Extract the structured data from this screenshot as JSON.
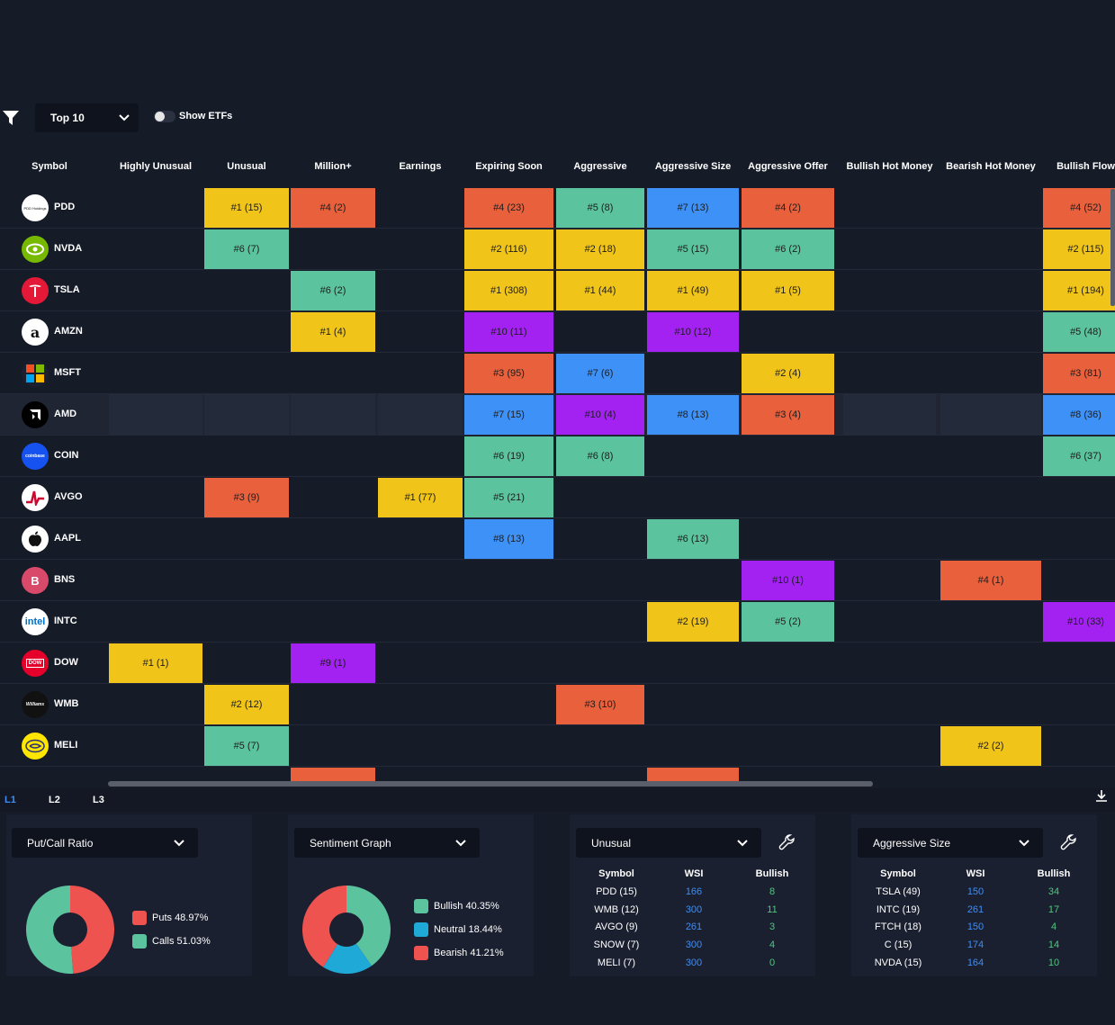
{
  "toolbar": {
    "top_select": "Top 10",
    "show_etfs": "Show ETFs"
  },
  "columns": [
    "Symbol",
    "Highly Unusual",
    "Unusual",
    "Million+",
    "Earnings",
    "Expiring Soon",
    "Aggressive",
    "Aggressive Size",
    "Aggressive Offer",
    "Bullish Hot Money",
    "Bearish Hot Money",
    "Bullish Flow"
  ],
  "colors": {
    "yellow": "#f0c419",
    "orange": "#e8603c",
    "teal": "#5bc49f",
    "blue": "#3e92f7",
    "purple": "#a322f2"
  },
  "rows": [
    {
      "symbol": "PDD",
      "logo": "PDD Holdings",
      "cells": [
        null,
        {
          "t": "#1 (15)",
          "c": "yellow"
        },
        {
          "t": "#4 (2)",
          "c": "orange"
        },
        null,
        {
          "t": "#4 (23)",
          "c": "orange"
        },
        {
          "t": "#5 (8)",
          "c": "teal"
        },
        {
          "t": "#7 (13)",
          "c": "blue"
        },
        {
          "t": "#4 (2)",
          "c": "orange"
        },
        null,
        null,
        {
          "t": "#4 (52)",
          "c": "orange"
        }
      ]
    },
    {
      "symbol": "NVDA",
      "logo": "",
      "cells": [
        null,
        {
          "t": "#6 (7)",
          "c": "teal"
        },
        null,
        null,
        {
          "t": "#2 (116)",
          "c": "yellow"
        },
        {
          "t": "#2 (18)",
          "c": "yellow"
        },
        {
          "t": "#5 (15)",
          "c": "teal"
        },
        {
          "t": "#6 (2)",
          "c": "teal"
        },
        null,
        null,
        {
          "t": "#2 (115)",
          "c": "yellow"
        }
      ]
    },
    {
      "symbol": "TSLA",
      "logo": "",
      "cells": [
        null,
        null,
        {
          "t": "#6 (2)",
          "c": "teal"
        },
        null,
        {
          "t": "#1 (308)",
          "c": "yellow"
        },
        {
          "t": "#1 (44)",
          "c": "yellow"
        },
        {
          "t": "#1 (49)",
          "c": "yellow"
        },
        {
          "t": "#1 (5)",
          "c": "yellow"
        },
        null,
        null,
        {
          "t": "#1 (194)",
          "c": "yellow"
        }
      ]
    },
    {
      "symbol": "AMZN",
      "logo": "a",
      "cells": [
        null,
        null,
        {
          "t": "#1 (4)",
          "c": "yellow"
        },
        null,
        {
          "t": "#10 (11)",
          "c": "purple"
        },
        null,
        {
          "t": "#10 (12)",
          "c": "purple"
        },
        null,
        null,
        null,
        {
          "t": "#5 (48)",
          "c": "teal"
        }
      ]
    },
    {
      "symbol": "MSFT",
      "logo": "",
      "cells": [
        null,
        null,
        null,
        null,
        {
          "t": "#3 (95)",
          "c": "orange"
        },
        {
          "t": "#7 (6)",
          "c": "blue"
        },
        null,
        {
          "t": "#2 (4)",
          "c": "yellow"
        },
        null,
        null,
        {
          "t": "#3 (81)",
          "c": "orange"
        }
      ]
    },
    {
      "symbol": "AMD",
      "logo": "",
      "highlight": true,
      "cells": [
        null,
        null,
        null,
        null,
        {
          "t": "#7 (15)",
          "c": "blue"
        },
        {
          "t": "#10 (4)",
          "c": "purple"
        },
        {
          "t": "#8 (13)",
          "c": "blue"
        },
        {
          "t": "#3 (4)",
          "c": "orange"
        },
        null,
        null,
        {
          "t": "#8 (36)",
          "c": "blue"
        }
      ]
    },
    {
      "symbol": "COIN",
      "logo": "coinbase",
      "cells": [
        null,
        null,
        null,
        null,
        {
          "t": "#6 (19)",
          "c": "teal"
        },
        {
          "t": "#6 (8)",
          "c": "teal"
        },
        null,
        null,
        null,
        null,
        {
          "t": "#6 (37)",
          "c": "teal"
        }
      ]
    },
    {
      "symbol": "AVGO",
      "logo": "",
      "cells": [
        null,
        {
          "t": "#3 (9)",
          "c": "orange"
        },
        null,
        {
          "t": "#1 (77)",
          "c": "yellow"
        },
        {
          "t": "#5 (21)",
          "c": "teal"
        },
        null,
        null,
        null,
        null,
        null,
        null
      ]
    },
    {
      "symbol": "AAPL",
      "logo": "",
      "cells": [
        null,
        null,
        null,
        null,
        {
          "t": "#8 (13)",
          "c": "blue"
        },
        null,
        {
          "t": "#6 (13)",
          "c": "teal"
        },
        null,
        null,
        null,
        null
      ]
    },
    {
      "symbol": "BNS",
      "logo": "B",
      "cells": [
        null,
        null,
        null,
        null,
        null,
        null,
        null,
        {
          "t": "#10 (1)",
          "c": "purple"
        },
        null,
        {
          "t": "#4 (1)",
          "c": "orange"
        },
        null
      ]
    },
    {
      "symbol": "INTC",
      "logo": "intel",
      "cells": [
        null,
        null,
        null,
        null,
        null,
        null,
        {
          "t": "#2 (19)",
          "c": "yellow"
        },
        {
          "t": "#5 (2)",
          "c": "teal"
        },
        null,
        null,
        {
          "t": "#10 (33)",
          "c": "purple"
        }
      ]
    },
    {
      "symbol": "DOW",
      "logo": "DOW",
      "cells": [
        {
          "t": "#1 (1)",
          "c": "yellow"
        },
        null,
        {
          "t": "#9 (1)",
          "c": "purple"
        },
        null,
        null,
        null,
        null,
        null,
        null,
        null,
        null
      ]
    },
    {
      "symbol": "WMB",
      "logo": "Williams",
      "cells": [
        null,
        {
          "t": "#2 (12)",
          "c": "yellow"
        },
        null,
        null,
        null,
        {
          "t": "#3 (10)",
          "c": "orange"
        },
        null,
        null,
        null,
        null,
        null
      ]
    },
    {
      "symbol": "MELI",
      "logo": "",
      "cells": [
        null,
        {
          "t": "#5 (7)",
          "c": "teal"
        },
        null,
        null,
        null,
        null,
        null,
        null,
        null,
        {
          "t": "#2 (2)",
          "c": "yellow"
        },
        null
      ]
    }
  ],
  "partial_row": {
    "cells": [
      null,
      null,
      {
        "t": "",
        "c": "orange"
      },
      null,
      null,
      null,
      {
        "t": "",
        "c": "orange"
      },
      null,
      null,
      null,
      null
    ]
  },
  "bottom_tabs": [
    "L1",
    "L2",
    "L3"
  ],
  "put_call": {
    "select": "Put/Call Ratio",
    "legend": [
      "Puts 48.97%",
      "Calls 51.03%"
    ],
    "values": [
      48.97,
      51.03
    ],
    "colors": [
      "#ef5350",
      "#5bc49f"
    ]
  },
  "sentiment": {
    "select": "Sentiment Graph",
    "legend": [
      "Bullish 40.35%",
      "Neutral 18.44%",
      "Bearish 41.21%"
    ],
    "values": [
      40.35,
      18.44,
      41.21
    ],
    "colors": [
      "#5bc49f",
      "#1fa9d6",
      "#ef5350"
    ]
  },
  "unusual_panel": {
    "select": "Unusual",
    "headers": [
      "Symbol",
      "WSI",
      "Bullish"
    ],
    "rows": [
      [
        "PDD (15)",
        "166",
        "8"
      ],
      [
        "WMB (12)",
        "300",
        "11"
      ],
      [
        "AVGO (9)",
        "261",
        "3"
      ],
      [
        "SNOW (7)",
        "300",
        "4"
      ],
      [
        "MELI (7)",
        "300",
        "0"
      ]
    ]
  },
  "aggsize_panel": {
    "select": "Aggressive Size",
    "headers": [
      "Symbol",
      "WSI",
      "Bullish"
    ],
    "rows": [
      [
        "TSLA (49)",
        "150",
        "34"
      ],
      [
        "INTC (19)",
        "261",
        "17"
      ],
      [
        "FTCH (18)",
        "150",
        "4"
      ],
      [
        "C (15)",
        "174",
        "14"
      ],
      [
        "NVDA (15)",
        "164",
        "10"
      ]
    ]
  }
}
